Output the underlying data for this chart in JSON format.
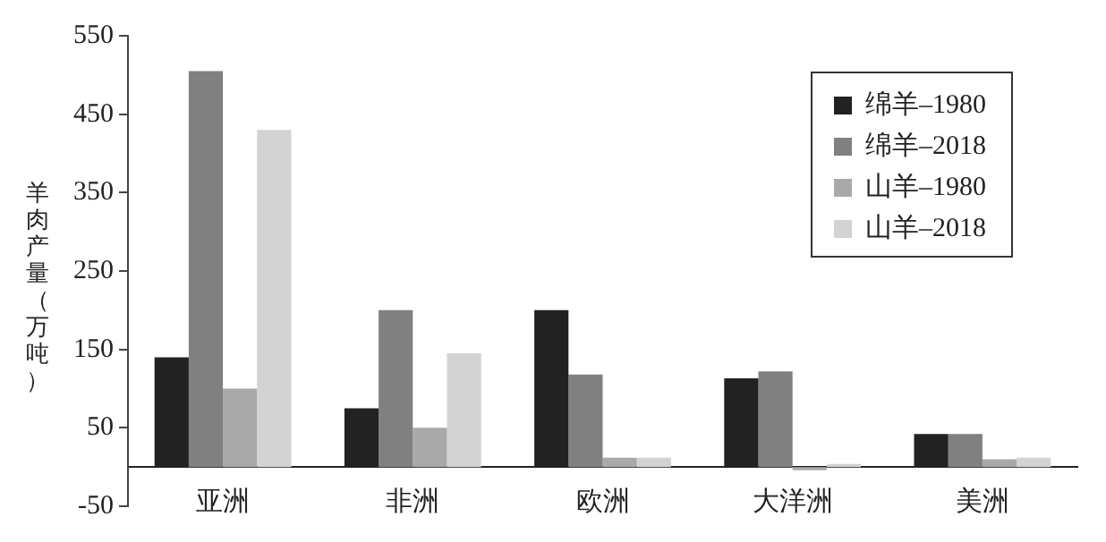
{
  "chart_data": {
    "type": "bar",
    "ylabel": "羊肉产量（万吨）",
    "categories": [
      "亚洲",
      "非洲",
      "欧洲",
      "大洋洲",
      "美洲"
    ],
    "series": [
      {
        "name": "绵羊–1980",
        "color": "#222222",
        "values": [
          140,
          75,
          200,
          113,
          42
        ]
      },
      {
        "name": "绵羊–2018",
        "color": "#808080",
        "values": [
          505,
          200,
          118,
          122,
          42
        ]
      },
      {
        "name": "山羊–1980",
        "color": "#a9a9a9",
        "values": [
          100,
          50,
          12,
          -4,
          10
        ]
      },
      {
        "name": "山羊–2018",
        "color": "#d3d3d3",
        "values": [
          430,
          145,
          12,
          4,
          12
        ]
      }
    ],
    "ylim": [
      -50,
      550
    ],
    "yticks": [
      -50,
      50,
      150,
      250,
      350,
      450,
      550
    ],
    "grid": false,
    "legend": "top right"
  }
}
